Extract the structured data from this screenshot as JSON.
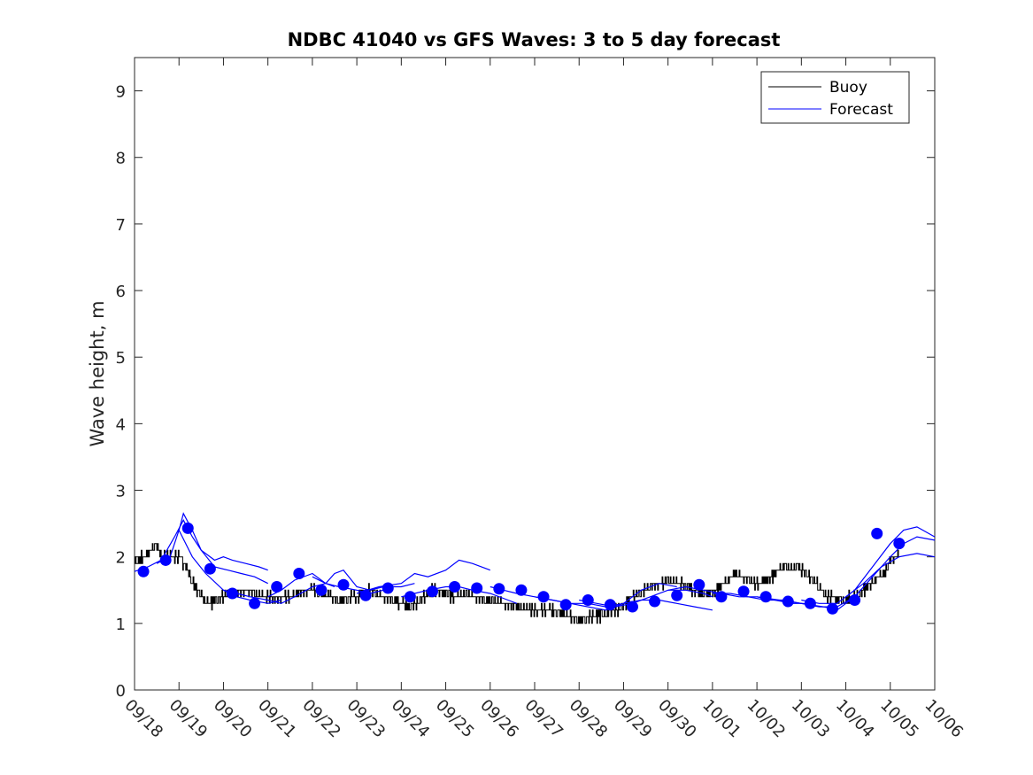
{
  "chart_data": {
    "type": "line",
    "title": "NDBC 41040 vs GFS Waves: 3 to 5 day forecast",
    "xlabel": "",
    "ylabel": "Wave height, m",
    "xlim": [
      0,
      18
    ],
    "ylim": [
      0,
      9.5
    ],
    "yticks": [
      0,
      1,
      2,
      3,
      4,
      5,
      6,
      7,
      8,
      9
    ],
    "ytick_labels": [
      "0",
      "1",
      "2",
      "3",
      "4",
      "5",
      "6",
      "7",
      "8",
      "9"
    ],
    "xticks": [
      0,
      1,
      2,
      3,
      4,
      5,
      6,
      7,
      8,
      9,
      10,
      11,
      12,
      13,
      14,
      15,
      16,
      17,
      18
    ],
    "xtick_labels": [
      "09/18",
      "09/19",
      "09/20",
      "09/21",
      "09/22",
      "09/23",
      "09/24",
      "09/25",
      "09/26",
      "09/27",
      "09/28",
      "09/29",
      "09/30",
      "10/01",
      "10/02",
      "10/03",
      "10/04",
      "10/05",
      "10/06"
    ],
    "legend": {
      "position": "top-right",
      "entries": [
        {
          "label": "Buoy",
          "color": "#000000"
        },
        {
          "label": "Forecast",
          "color": "#0000ff"
        }
      ]
    },
    "series": [
      {
        "name": "Buoy",
        "color": "#000000",
        "x": [
          0,
          0.2,
          0.4,
          0.5,
          0.6,
          0.8,
          1.0,
          1.1,
          1.2,
          1.3,
          1.4,
          1.5,
          1.6,
          1.8,
          2.0,
          2.2,
          2.5,
          2.8,
          3.0,
          3.2,
          3.5,
          3.8,
          4.0,
          4.3,
          4.6,
          5.0,
          5.3,
          5.6,
          6.0,
          6.2,
          6.4,
          6.6,
          6.8,
          7.0,
          7.2,
          7.5,
          7.8,
          8.0,
          8.3,
          8.6,
          9.0,
          9.3,
          9.6,
          10.0,
          10.3,
          10.6,
          10.9,
          11.2,
          11.5,
          11.8,
          12.0,
          12.3,
          12.6,
          12.9,
          13.2,
          13.5,
          13.8,
          14.0,
          14.3,
          14.6,
          14.9,
          15.2,
          15.5,
          15.8,
          16.0,
          16.3,
          16.6,
          16.9,
          17.0,
          17.1,
          17.2
        ],
        "values": [
          1.9,
          2.0,
          2.1,
          2.2,
          2.0,
          2.0,
          2.0,
          1.9,
          1.8,
          1.6,
          1.5,
          1.4,
          1.3,
          1.35,
          1.4,
          1.45,
          1.5,
          1.4,
          1.4,
          1.35,
          1.4,
          1.5,
          1.5,
          1.45,
          1.35,
          1.4,
          1.5,
          1.4,
          1.3,
          1.25,
          1.35,
          1.45,
          1.5,
          1.45,
          1.4,
          1.45,
          1.35,
          1.35,
          1.3,
          1.25,
          1.2,
          1.2,
          1.15,
          1.05,
          1.1,
          1.15,
          1.2,
          1.4,
          1.5,
          1.6,
          1.65,
          1.6,
          1.5,
          1.45,
          1.55,
          1.75,
          1.65,
          1.6,
          1.7,
          1.85,
          1.85,
          1.7,
          1.45,
          1.35,
          1.35,
          1.45,
          1.6,
          1.8,
          1.95,
          2.0,
          2.05
        ]
      },
      {
        "name": "Forecast",
        "color": "#0000ff",
        "runs": [
          {
            "x": [
              0,
              0.3,
              0.6,
              0.9,
              1.1,
              1.3,
              1.5,
              1.8,
              2.0,
              2.2,
              2.5,
              2.8,
              3.0
            ],
            "values": [
              1.78,
              1.85,
              1.95,
              2.3,
              2.55,
              2.3,
              2.1,
              1.95,
              2.0,
              1.95,
              1.9,
              1.85,
              1.8
            ]
          },
          {
            "x": [
              0.5,
              0.8,
              1.0,
              1.1,
              1.3,
              1.5,
              1.8,
              2.1,
              2.4,
              2.7,
              3.0
            ],
            "values": [
              1.9,
              2.0,
              2.4,
              2.65,
              2.4,
              2.1,
              1.85,
              1.8,
              1.75,
              1.7,
              1.6
            ]
          },
          {
            "x": [
              1.0,
              1.3,
              1.6,
              2.0,
              2.3,
              2.6,
              3.0,
              3.3
            ],
            "values": [
              2.4,
              2.0,
              1.75,
              1.5,
              1.4,
              1.35,
              1.3,
              1.35
            ]
          },
          {
            "x": [
              2.0,
              2.3,
              2.6,
              3.0,
              3.3,
              3.6,
              4.0,
              4.3,
              4.5
            ],
            "values": [
              1.5,
              1.45,
              1.4,
              1.35,
              1.3,
              1.4,
              1.55,
              1.6,
              1.55
            ]
          },
          {
            "x": [
              3.0,
              3.3,
              3.6,
              4.0,
              4.3,
              4.6,
              5.0,
              5.3,
              5.6
            ],
            "values": [
              1.4,
              1.5,
              1.65,
              1.75,
              1.6,
              1.55,
              1.5,
              1.45,
              1.5
            ]
          },
          {
            "x": [
              4.0,
              4.3,
              4.5,
              4.7,
              5.0,
              5.3,
              5.6,
              6.0,
              6.3
            ],
            "values": [
              1.7,
              1.6,
              1.75,
              1.8,
              1.55,
              1.5,
              1.55,
              1.55,
              1.6
            ]
          },
          {
            "x": [
              5.0,
              5.5,
              6.0,
              6.3,
              6.6,
              7.0,
              7.3,
              7.6,
              8.0
            ],
            "values": [
              1.45,
              1.55,
              1.6,
              1.75,
              1.7,
              1.8,
              1.95,
              1.9,
              1.8
            ]
          },
          {
            "x": [
              6.0,
              6.3,
              6.6,
              7.0,
              7.3,
              7.6,
              8.0,
              8.4,
              8.6
            ],
            "values": [
              1.4,
              1.45,
              1.5,
              1.55,
              1.55,
              1.5,
              1.45,
              1.35,
              1.3
            ]
          },
          {
            "x": [
              8.0,
              8.3,
              8.6,
              9.0,
              9.4,
              9.8,
              10.2,
              10.6,
              11.0
            ],
            "values": [
              1.55,
              1.5,
              1.45,
              1.4,
              1.35,
              1.3,
              1.3,
              1.25,
              1.3
            ]
          },
          {
            "x": [
              9.0,
              9.4,
              9.8,
              10.2,
              10.6,
              11.0,
              11.4,
              11.8,
              12.2
            ],
            "values": [
              1.4,
              1.35,
              1.3,
              1.25,
              1.2,
              1.3,
              1.5,
              1.6,
              1.55
            ]
          },
          {
            "x": [
              10.0,
              10.4,
              10.8,
              11.2,
              11.6,
              12.0,
              12.4,
              12.8,
              13.0
            ],
            "values": [
              1.35,
              1.3,
              1.25,
              1.3,
              1.4,
              1.5,
              1.5,
              1.45,
              1.4
            ]
          },
          {
            "x": [
              11.0,
              11.4,
              11.8,
              12.2,
              12.6,
              13.0
            ],
            "values": [
              1.3,
              1.35,
              1.35,
              1.3,
              1.25,
              1.2
            ]
          },
          {
            "x": [
              12.0,
              12.4,
              12.8,
              13.2,
              13.6,
              14.0,
              14.4,
              14.8,
              15.2
            ],
            "values": [
              1.5,
              1.55,
              1.5,
              1.45,
              1.4,
              1.4,
              1.35,
              1.3,
              1.3
            ]
          },
          {
            "x": [
              13.0,
              13.4,
              13.8,
              14.2,
              14.6,
              15.0,
              15.4,
              15.8,
              16.2
            ],
            "values": [
              1.45,
              1.45,
              1.4,
              1.35,
              1.35,
              1.3,
              1.25,
              1.25,
              1.4
            ]
          },
          {
            "x": [
              14.0,
              14.5,
              15.0,
              15.5,
              15.8,
              16.2,
              16.6,
              17.0,
              17.3,
              17.6,
              18.0
            ],
            "values": [
              1.4,
              1.35,
              1.3,
              1.25,
              1.2,
              1.4,
              1.7,
              2.0,
              2.2,
              2.3,
              2.25
            ]
          },
          {
            "x": [
              15.0,
              15.4,
              15.8,
              16.2,
              16.6,
              17.0,
              17.3,
              17.6,
              18.0
            ],
            "values": [
              1.35,
              1.3,
              1.3,
              1.5,
              1.85,
              2.2,
              2.4,
              2.45,
              2.3
            ]
          },
          {
            "x": [
              16.0,
              16.4,
              16.8,
              17.2,
              17.6,
              18.0
            ],
            "values": [
              1.4,
              1.6,
              1.85,
              2.0,
              2.05,
              2.0
            ]
          }
        ]
      },
      {
        "name": "Forecast points",
        "color": "#0000ff",
        "x": [
          0.2,
          1.2,
          2.2,
          3.2,
          4.2,
          5.2,
          6.2,
          7.2,
          8.2,
          9.2,
          10.2,
          11.2,
          12.2,
          13.2,
          14.2,
          15.2,
          16.2,
          17.2,
          0.7,
          1.7,
          2.7,
          3.7,
          4.7,
          5.7,
          6.7,
          7.7,
          8.7,
          9.7,
          10.7,
          11.7,
          12.7,
          13.7,
          14.7,
          15.7,
          16.7
        ],
        "values": [
          1.78,
          2.43,
          1.45,
          1.55,
          1.5,
          1.42,
          1.4,
          1.55,
          1.52,
          1.4,
          1.35,
          1.25,
          1.42,
          1.4,
          1.4,
          1.3,
          1.35,
          2.2,
          1.95,
          1.82,
          1.3,
          1.75,
          1.58,
          1.53,
          1.48,
          1.53,
          1.5,
          1.28,
          1.28,
          1.33,
          1.58,
          1.48,
          1.33,
          1.22,
          2.35
        ]
      }
    ]
  }
}
